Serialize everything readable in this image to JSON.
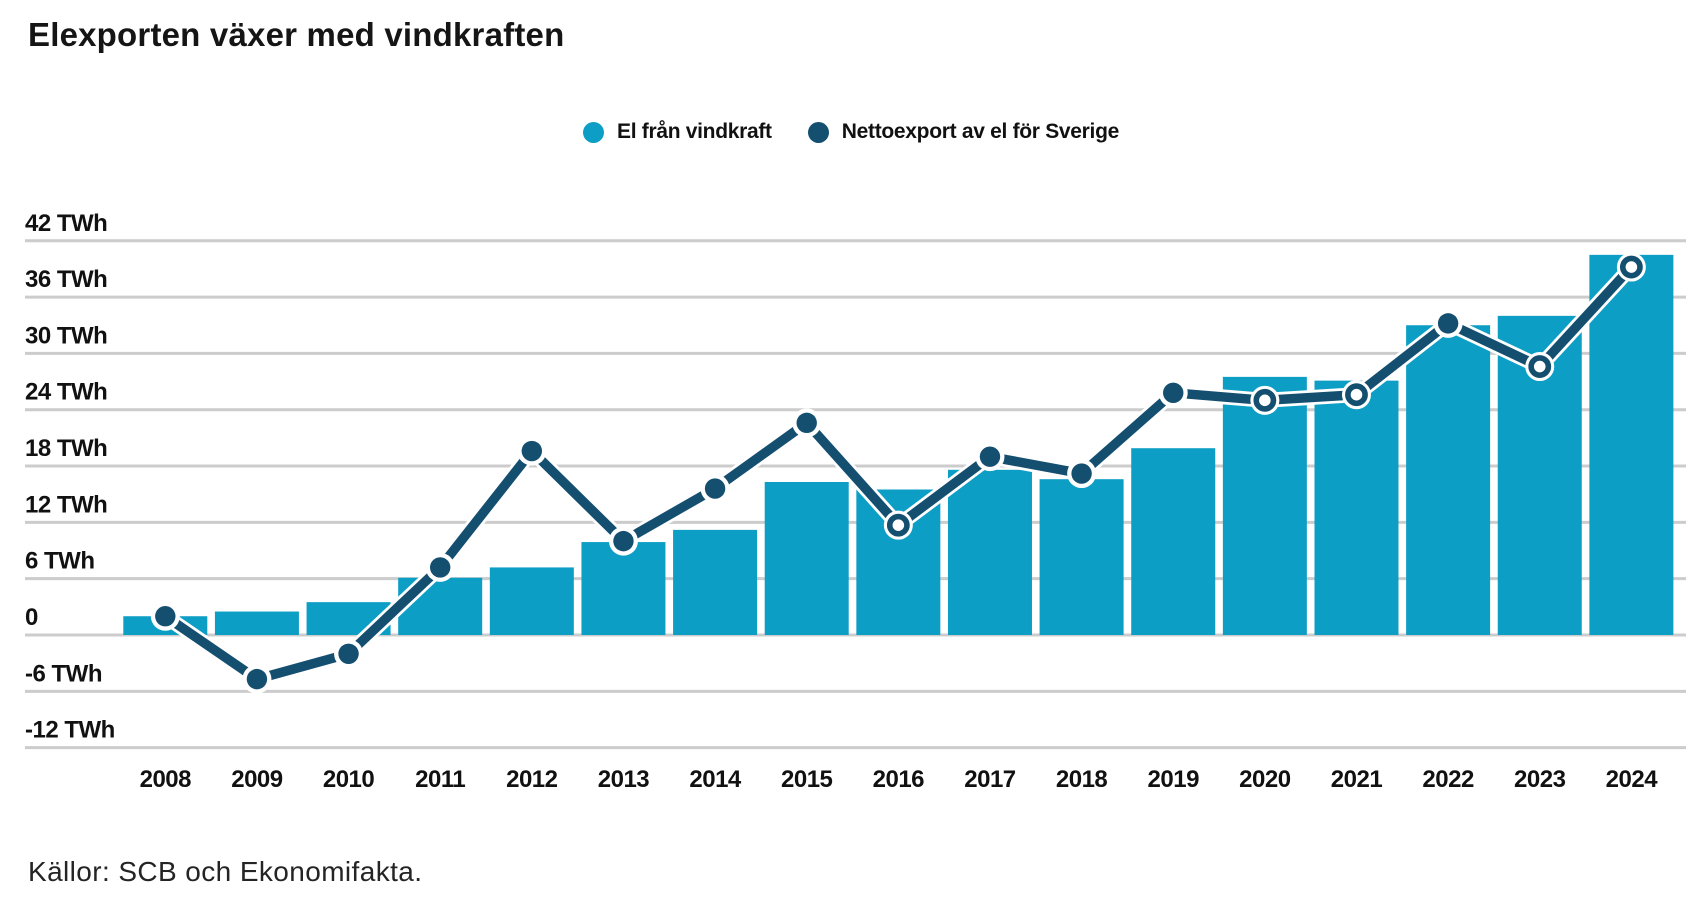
{
  "title": "Elexporten växer med vindkraften",
  "source": "Källor: SCB och Ekonomifakta.",
  "colors": {
    "wind_bar": "#0d9ec5",
    "netexport_line": "#144f70",
    "gridline": "#cccccc",
    "text": "#111111"
  },
  "legend": [
    {
      "label": "El från vindkraft",
      "color": "#0d9ec5"
    },
    {
      "label": "Nettoexport av el för Sverige",
      "color": "#144f70"
    }
  ],
  "chart_data": {
    "type": "bar",
    "subtype": "bar+line combo",
    "title": "Elexporten växer med vindkraften",
    "unit": "TWh",
    "categories": [
      "2008",
      "2009",
      "2010",
      "2011",
      "2012",
      "2013",
      "2014",
      "2015",
      "2016",
      "2017",
      "2018",
      "2019",
      "2020",
      "2021",
      "2022",
      "2023",
      "2024"
    ],
    "series": [
      {
        "name": "El från vindkraft",
        "type": "bar",
        "color": "#0d9ec5",
        "values": [
          2.0,
          2.5,
          3.5,
          6.1,
          7.2,
          9.9,
          11.2,
          16.3,
          15.5,
          17.6,
          16.6,
          19.9,
          27.5,
          27.1,
          33.0,
          34.0,
          40.5
        ]
      },
      {
        "name": "Nettoexport av el för Sverige",
        "type": "line",
        "color": "#144f70",
        "values": [
          2.0,
          -4.7,
          -2.0,
          7.2,
          19.6,
          10.0,
          15.6,
          22.6,
          11.7,
          19.0,
          17.2,
          25.8,
          25.0,
          25.6,
          33.2,
          28.6,
          39.2
        ]
      }
    ],
    "yticks": [
      {
        "value": 42,
        "label": "42 TWh"
      },
      {
        "value": 36,
        "label": "36 TWh"
      },
      {
        "value": 30,
        "label": "30 TWh"
      },
      {
        "value": 24,
        "label": "24 TWh"
      },
      {
        "value": 18,
        "label": "18 TWh"
      },
      {
        "value": 12,
        "label": "12 TWh"
      },
      {
        "value": 6,
        "label": "6 TWh"
      },
      {
        "value": 0,
        "label": "0"
      },
      {
        "value": -6,
        "label": "-6 TWh"
      },
      {
        "value": -12,
        "label": "-12 TWh"
      }
    ],
    "ylim": [
      -12,
      42
    ],
    "grid": true,
    "legend_position": "top-center"
  }
}
